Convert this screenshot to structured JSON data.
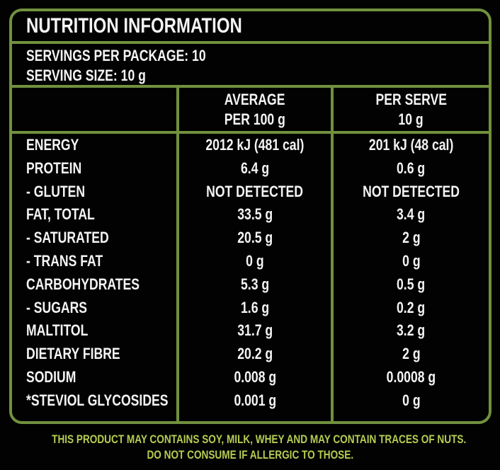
{
  "colors": {
    "border_green": "#71913e",
    "footer_green": "#b5cd52",
    "background": "#020202",
    "text": "#f4f4f4"
  },
  "title": "NUTRITION INFORMATION",
  "servings": {
    "per_package": "SERVINGS PER PACKAGE: 10",
    "size": "SERVING SIZE: 10 g"
  },
  "table": {
    "columns": [
      {
        "line1": "AVERAGE",
        "line2": "PER 100 g"
      },
      {
        "line1": "PER SERVE",
        "line2": "10 g"
      }
    ],
    "rows": [
      {
        "label": "ENERGY",
        "avg": "2012 kJ (481 cal)",
        "serve": "201 kJ (48 cal)"
      },
      {
        "label": "PROTEIN",
        "avg": "6.4 g",
        "serve": "0.6 g"
      },
      {
        "label": "- GLUTEN",
        "avg": "NOT DETECTED",
        "serve": "NOT DETECTED"
      },
      {
        "label": "FAT, TOTAL",
        "avg": "33.5 g",
        "serve": "3.4 g"
      },
      {
        "label": "- SATURATED",
        "avg": "20.5 g",
        "serve": "2 g"
      },
      {
        "label": "- TRANS FAT",
        "avg": "0 g",
        "serve": "0 g"
      },
      {
        "label": "CARBOHYDRATES",
        "avg": "5.3 g",
        "serve": "0.5 g"
      },
      {
        "label": "- SUGARS",
        "avg": "1.6 g",
        "serve": "0.2 g"
      },
      {
        "label": "MALTITOL",
        "avg": "31.7 g",
        "serve": "3.2 g"
      },
      {
        "label": "DIETARY FIBRE",
        "avg": "20.2 g",
        "serve": "2 g"
      },
      {
        "label": "SODIUM",
        "avg": "0.008 g",
        "serve": "0.0008 g"
      },
      {
        "label": "*STEVIOL GLYCOSIDES",
        "avg": "0.001 g",
        "serve": "0 g"
      }
    ]
  },
  "footer": {
    "line1": "THIS PRODUCT MAY CONTAINS SOY, MILK, WHEY AND MAY CONTAIN TRACES OF NUTS.",
    "line2": "DO NOT CONSUME IF ALLERGIC TO THOSE."
  }
}
